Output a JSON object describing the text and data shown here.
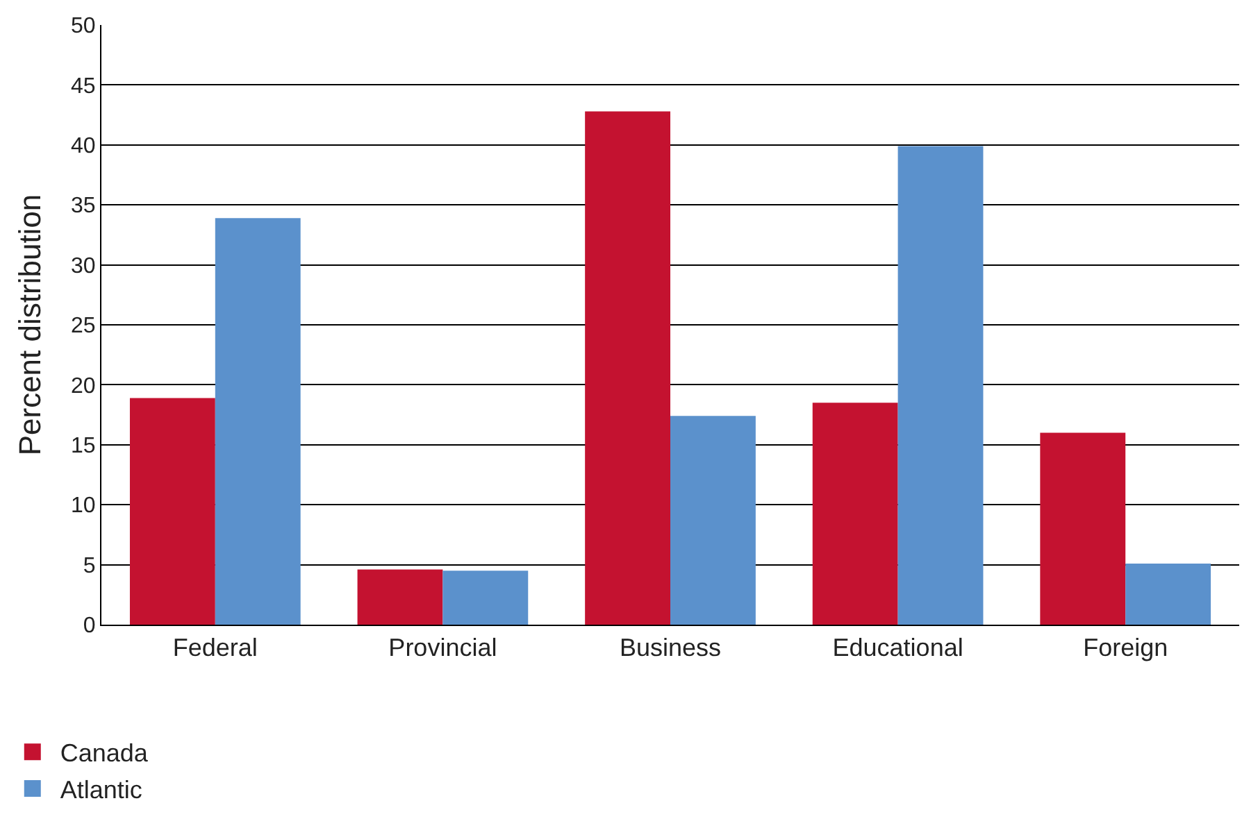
{
  "chart_data": {
    "type": "bar",
    "ylabel": "Percent distribution",
    "categories": [
      "Federal",
      "Provincial",
      "Business",
      "Educational",
      "Foreign"
    ],
    "series": [
      {
        "name": "Canada",
        "color": "#c41230",
        "values": [
          18.9,
          4.6,
          42.8,
          18.5,
          16.0
        ]
      },
      {
        "name": "Atlantic",
        "color": "#5b91cc",
        "values": [
          33.9,
          4.5,
          17.4,
          39.9,
          5.1
        ]
      }
    ],
    "ylim": [
      0,
      50
    ],
    "yticks": [
      0,
      5,
      10,
      15,
      20,
      25,
      30,
      35,
      40,
      45,
      50
    ],
    "grid": "y",
    "legend": "bottom left"
  }
}
